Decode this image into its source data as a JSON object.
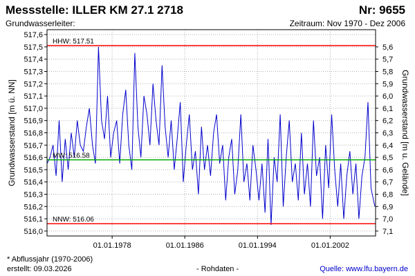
{
  "header": {
    "title": "Messstelle: ILLER KM 27.1 2718",
    "number": "Nr: 9655",
    "subtitle_left": "Grundwasserleiter:",
    "subtitle_right": "Zeitraum: Nov 1970 - Dez 2006"
  },
  "footer": {
    "note": "* Abflussjahr (1970-2006)",
    "created": "erstellt:  09.03.2026",
    "datatype": "- Rohdaten -",
    "source": "Quelle: www.lfu.bayern.de"
  },
  "chart_data": {
    "type": "line",
    "ylabel": "Grundwasserstand [m ü. NN]",
    "ylabel_right": "Grundwasserstand [m u. Gelände]",
    "xlim": [
      "1970-11-01",
      "2006-12-31"
    ],
    "ylim": [
      515.96,
      517.64
    ],
    "yticks": [
      "516,0",
      "516,1",
      "516,2",
      "516,3",
      "516,4",
      "516,5",
      "516,6",
      "516,7",
      "516,8",
      "516,9",
      "517,0",
      "517,1",
      "517,2",
      "517,3",
      "517,4",
      "517,5",
      "517,6"
    ],
    "yticks_right": [
      "5,6",
      "5,7",
      "5,8",
      "5,9",
      "6,0",
      "6,1",
      "6,2",
      "6,3",
      "6,4",
      "6,5",
      "6,6",
      "6,7",
      "6,8",
      "6,9",
      "7,0",
      "7,1"
    ],
    "xticks": [
      "01.01.1978",
      "01.01.1986",
      "01.01.1994",
      "01.01.2002"
    ],
    "reference_lines": [
      {
        "label": "HHW: 517.51",
        "value": 517.51,
        "color": "#ff0000"
      },
      {
        "label": "MW: 516.58",
        "value": 516.58,
        "color": "#00aa00"
      },
      {
        "label": "NNW: 516.06",
        "value": 516.06,
        "color": "#ff0000"
      }
    ],
    "series_color": "#0000cc",
    "grid": "dotted",
    "series": [
      {
        "x": [
          "1970-11-01",
          "1971-03-01",
          "1971-07-01",
          "1971-11-01",
          "1972-03-01",
          "1972-07-01",
          "1972-11-01",
          "1973-03-01",
          "1973-07-01",
          "1973-11-01",
          "1974-03-01",
          "1974-07-01",
          "1974-11-01",
          "1975-03-01",
          "1975-07-01",
          "1975-11-01",
          "1976-03-01",
          "1976-07-01",
          "1976-11-01",
          "1977-03-01",
          "1977-07-01",
          "1977-11-01",
          "1978-03-01",
          "1978-07-01",
          "1978-11-01",
          "1979-03-01",
          "1979-07-01",
          "1979-11-01",
          "1980-03-01",
          "1980-07-01",
          "1980-11-01",
          "1981-03-01",
          "1981-07-01",
          "1981-11-01",
          "1982-03-01",
          "1982-07-01",
          "1982-11-01",
          "1983-03-01",
          "1983-07-01",
          "1983-11-01",
          "1984-03-01",
          "1984-07-01",
          "1984-11-01",
          "1985-03-01",
          "1985-07-01",
          "1985-11-01",
          "1986-03-01",
          "1986-07-01",
          "1986-11-01",
          "1987-03-01",
          "1987-07-01",
          "1987-11-01",
          "1988-03-01",
          "1988-07-01",
          "1988-11-01",
          "1989-03-01",
          "1989-07-01",
          "1989-11-01",
          "1990-03-01",
          "1990-07-01",
          "1990-11-01",
          "1991-03-01",
          "1991-07-01",
          "1991-11-01",
          "1992-03-01",
          "1992-07-01",
          "1992-11-01",
          "1993-03-01",
          "1993-07-01",
          "1993-11-01",
          "1994-03-01",
          "1994-07-01",
          "1994-11-01",
          "1995-03-01",
          "1995-07-01",
          "1995-11-01",
          "1996-03-01",
          "1996-07-01",
          "1996-11-01",
          "1997-03-01",
          "1997-07-01",
          "1997-11-01",
          "1998-03-01",
          "1998-07-01",
          "1998-11-01",
          "1999-03-01",
          "1999-07-01",
          "1999-11-01",
          "2000-03-01",
          "2000-07-01",
          "2000-11-01",
          "2001-03-01",
          "2001-07-01",
          "2001-11-01",
          "2002-03-01",
          "2002-07-01",
          "2002-11-01",
          "2003-03-01",
          "2003-07-01",
          "2003-11-01",
          "2004-03-01",
          "2004-07-01",
          "2004-11-01",
          "2005-03-01",
          "2005-07-01",
          "2005-11-01",
          "2006-03-01",
          "2006-07-01",
          "2006-12-01"
        ],
        "y": [
          516.55,
          516.6,
          516.7,
          516.45,
          516.9,
          516.4,
          516.75,
          516.5,
          516.8,
          516.6,
          516.9,
          516.7,
          516.65,
          516.85,
          517.0,
          516.7,
          516.55,
          517.5,
          516.9,
          516.75,
          517.1,
          516.6,
          516.8,
          516.9,
          516.55,
          516.95,
          517.15,
          516.7,
          516.5,
          517.45,
          516.85,
          516.6,
          517.1,
          516.95,
          516.7,
          517.2,
          516.9,
          516.7,
          517.35,
          516.85,
          516.6,
          516.9,
          516.5,
          516.75,
          517.05,
          516.4,
          516.7,
          516.95,
          516.5,
          516.65,
          516.3,
          516.85,
          516.5,
          516.7,
          516.45,
          516.8,
          516.95,
          516.55,
          516.7,
          516.25,
          516.6,
          516.75,
          516.3,
          516.5,
          516.95,
          516.4,
          516.55,
          516.25,
          516.7,
          516.5,
          516.25,
          516.55,
          516.15,
          516.75,
          516.05,
          516.6,
          516.4,
          516.95,
          516.2,
          516.6,
          516.9,
          516.4,
          516.55,
          516.25,
          516.8,
          516.3,
          516.55,
          516.2,
          516.9,
          516.45,
          516.6,
          516.1,
          516.7,
          516.35,
          516.95,
          516.5,
          516.2,
          516.55,
          516.1,
          516.45,
          516.65,
          516.3,
          516.55,
          516.1,
          516.45,
          516.6,
          517.05,
          516.35,
          516.2
        ]
      }
    ]
  }
}
